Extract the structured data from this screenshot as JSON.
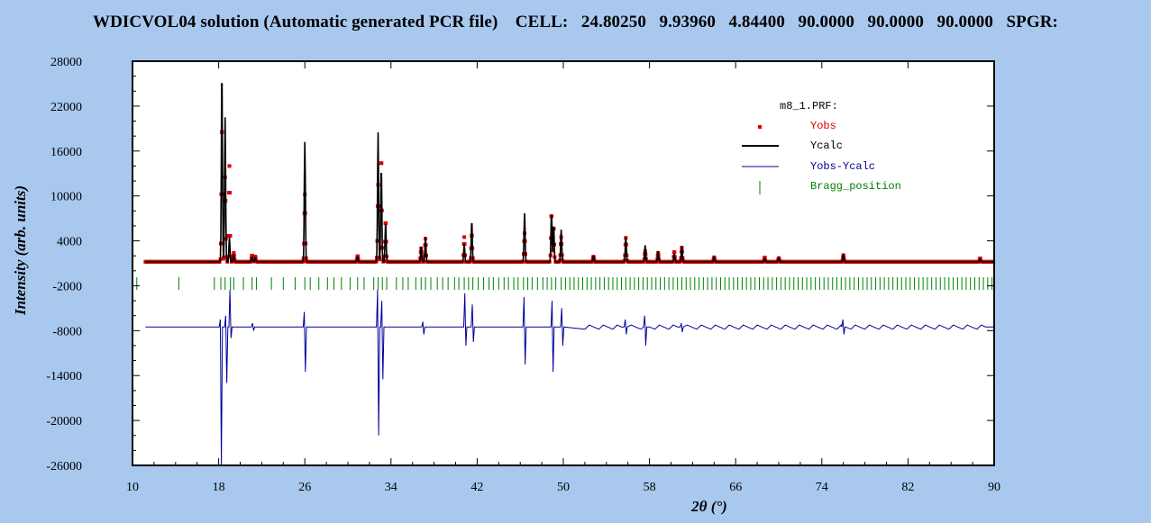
{
  "window": {
    "title": "WDICVOL04 solution (Automatic generated PCR file)    CELL:   24.80250   9.93960   4.84400   90.0000   90.0000   90.0000   SPGR:"
  },
  "chart_data": {
    "type": "line",
    "xlabel": "2θ (°)",
    "ylabel": "Intensity (arb. units)",
    "xlim": [
      10,
      90
    ],
    "ylim": [
      -26000,
      28000
    ],
    "xticks": [
      10,
      18,
      26,
      34,
      42,
      50,
      58,
      66,
      74,
      82,
      90
    ],
    "yticks": [
      28000,
      22000,
      16000,
      10000,
      4000,
      -2000,
      -8000,
      -14000,
      -20000,
      -26000
    ],
    "legend": {
      "title": "m8_1.PRF:",
      "placement": "top-right",
      "entries": [
        "Yobs",
        "Ycalc",
        "Yobs-Ycalc",
        "Bragg_position"
      ]
    },
    "colors": {
      "Yobs": "#dd0000",
      "Ycalc": "#000000",
      "Yobs-Ycalc": "#00009a",
      "Bragg_position": "#008000"
    },
    "baseline": 1200,
    "difference_offset": -7500,
    "bragg_level": -1700,
    "peaks": [
      {
        "x": 18.3,
        "ycalc": 27000,
        "yobs": 20000
      },
      {
        "x": 18.6,
        "ycalc": 20500,
        "yobs": 12500
      },
      {
        "x": 19.0,
        "ycalc": 4500,
        "yobs": 14000
      },
      {
        "x": 19.4,
        "ycalc": 2200,
        "yobs": 2400
      },
      {
        "x": 21.1,
        "ycalc": 1900,
        "yobs": 2100
      },
      {
        "x": 21.4,
        "ycalc": 1700,
        "yobs": 1900
      },
      {
        "x": 26.0,
        "ycalc": 17200,
        "yobs": 10200
      },
      {
        "x": 30.9,
        "ycalc": 1900,
        "yobs": 2000
      },
      {
        "x": 32.8,
        "ycalc": 18500,
        "yobs": 11500
      },
      {
        "x": 33.1,
        "ycalc": 14000,
        "yobs": 15500
      },
      {
        "x": 33.5,
        "ycalc": 6500,
        "yobs": 6800
      },
      {
        "x": 36.8,
        "ycalc": 3200,
        "yobs": 3000
      },
      {
        "x": 37.2,
        "ycalc": 4500,
        "yobs": 4300
      },
      {
        "x": 40.8,
        "ycalc": 3600,
        "yobs": 4500
      },
      {
        "x": 41.5,
        "ycalc": 6700,
        "yobs": 5000
      },
      {
        "x": 46.4,
        "ycalc": 7700,
        "yobs": 5000
      },
      {
        "x": 48.9,
        "ycalc": 7900,
        "yobs": 7800
      },
      {
        "x": 49.1,
        "ycalc": 6200,
        "yobs": 6000
      },
      {
        "x": 49.8,
        "ycalc": 5500,
        "yobs": 4500
      },
      {
        "x": 52.8,
        "ycalc": 2000,
        "yobs": 1900
      },
      {
        "x": 55.8,
        "ycalc": 4500,
        "yobs": 4400
      },
      {
        "x": 57.6,
        "ycalc": 3400,
        "yobs": 2600
      },
      {
        "x": 58.8,
        "ycalc": 2600,
        "yobs": 2400
      },
      {
        "x": 60.3,
        "ycalc": 2300,
        "yobs": 2600
      },
      {
        "x": 61.0,
        "ycalc": 3300,
        "yobs": 3100
      },
      {
        "x": 64.0,
        "ycalc": 1800,
        "yobs": 1800
      },
      {
        "x": 68.7,
        "ycalc": 1700,
        "yobs": 1800
      },
      {
        "x": 70.0,
        "ycalc": 1700,
        "yobs": 1700
      },
      {
        "x": 76.0,
        "ycalc": 2200,
        "yobs": 2100
      },
      {
        "x": 88.7,
        "ycalc": 1600,
        "yobs": 1700
      }
    ],
    "difference_features": [
      {
        "x": 18.2,
        "min": -26000,
        "max": -6500
      },
      {
        "x": 18.7,
        "min": -15000,
        "max": -6000
      },
      {
        "x": 19.1,
        "min": -9000,
        "max": -2500
      },
      {
        "x": 21.2,
        "min": -8000,
        "max": -7000
      },
      {
        "x": 26.0,
        "min": -13500,
        "max": -5500
      },
      {
        "x": 32.8,
        "min": -22000,
        "max": -2500
      },
      {
        "x": 33.2,
        "min": -14500,
        "max": -4000
      },
      {
        "x": 37.0,
        "min": -8500,
        "max": -6800
      },
      {
        "x": 40.9,
        "min": -10000,
        "max": -3000
      },
      {
        "x": 41.6,
        "min": -9500,
        "max": -4500
      },
      {
        "x": 46.4,
        "min": -12500,
        "max": -3500
      },
      {
        "x": 49.0,
        "min": -13500,
        "max": -4000
      },
      {
        "x": 49.9,
        "min": -10000,
        "max": -5000
      },
      {
        "x": 55.8,
        "min": -8500,
        "max": -6500
      },
      {
        "x": 57.6,
        "min": -10000,
        "max": -6000
      },
      {
        "x": 61.0,
        "min": -8200,
        "max": -7000
      },
      {
        "x": 76.0,
        "min": -8500,
        "max": -6500
      }
    ],
    "bragg_positions": [
      10.4,
      14.3,
      17.6,
      18.2,
      18.6,
      19.1,
      19.4,
      20.3,
      21.1,
      21.5,
      22.9,
      24.0,
      25.1,
      26.0,
      26.5,
      27.3,
      28.1,
      28.7,
      29.4,
      30.2,
      30.9,
      31.5,
      32.4,
      32.8,
      33.2,
      33.6,
      34.5,
      35.1,
      35.6,
      36.3,
      36.8,
      37.2,
      37.7,
      38.3,
      38.8,
      39.3,
      39.9,
      40.3,
      40.8,
      41.2,
      41.6,
      42.1,
      42.6,
      43.1,
      43.5,
      44.0,
      44.5,
      44.9,
      45.4,
      45.8,
      46.3,
      46.7,
      47.1,
      47.6,
      48.1,
      48.5,
      48.9,
      49.3,
      49.8,
      50.2,
      50.6,
      51.0,
      51.4,
      51.8,
      52.2,
      52.6,
      53.0,
      53.4,
      53.8,
      54.2,
      54.6,
      55.0,
      55.4,
      55.8,
      56.2,
      56.6,
      57.0,
      57.4,
      57.8,
      58.2,
      58.6,
      59.0,
      59.4,
      59.8,
      60.2,
      60.6,
      61.0,
      61.4,
      61.8,
      62.2,
      62.6,
      63.0,
      63.4,
      63.8,
      64.2,
      64.6,
      65.0,
      65.4,
      65.8,
      66.2,
      66.6,
      67.0,
      67.4,
      67.8,
      68.2,
      68.6,
      69.0,
      69.4,
      69.8,
      70.2,
      70.6,
      71.0,
      71.4,
      71.8,
      72.2,
      72.6,
      73.0,
      73.4,
      73.8,
      74.2,
      74.6,
      75.0,
      75.4,
      75.8,
      76.2,
      76.6,
      77.0,
      77.4,
      77.8,
      78.2,
      78.6,
      79.0,
      79.4,
      79.8,
      80.2,
      80.6,
      81.0,
      81.4,
      81.8,
      82.2,
      82.6,
      83.0,
      83.4,
      83.8,
      84.2,
      84.6,
      85.0,
      85.4,
      85.8,
      86.2,
      86.6,
      87.0,
      87.4,
      87.8,
      88.2,
      88.6,
      89.0,
      89.4,
      89.8
    ]
  }
}
